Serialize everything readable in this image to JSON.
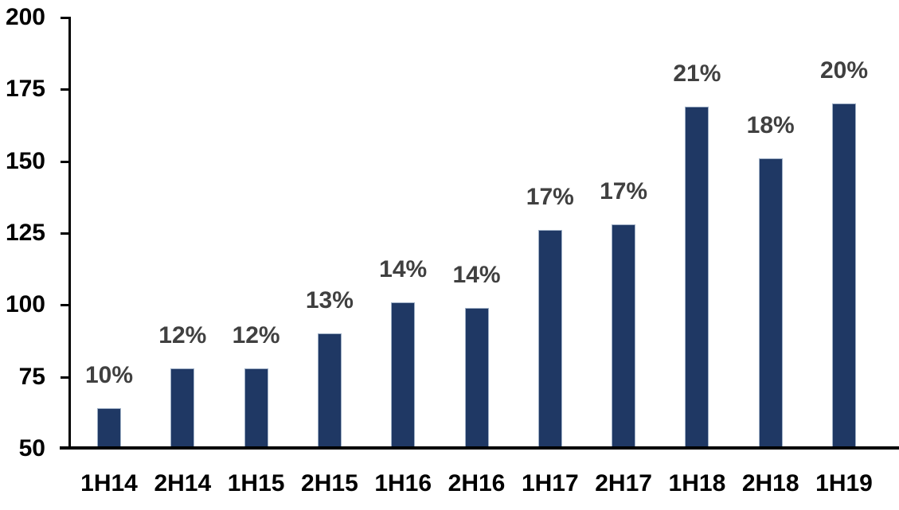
{
  "chart_data": {
    "type": "bar",
    "categories": [
      "1H14",
      "2H14",
      "1H15",
      "2H15",
      "1H16",
      "2H16",
      "1H17",
      "2H17",
      "1H18",
      "2H18",
      "1H19"
    ],
    "values": [
      64,
      78,
      78,
      90,
      101,
      99,
      126,
      128,
      169,
      151,
      170
    ],
    "bar_labels": [
      "10%",
      "12%",
      "12%",
      "13%",
      "14%",
      "14%",
      "17%",
      "17%",
      "21%",
      "18%",
      "20%"
    ],
    "title": "",
    "xlabel": "",
    "ylabel": "",
    "ylim": [
      50,
      200
    ],
    "yticks": [
      50,
      75,
      100,
      125,
      150,
      175,
      200
    ],
    "grid": false,
    "legend_position": "none",
    "colors": {
      "bar_fill": "#1F3864",
      "bar_edge": "#9fb0c6",
      "data_label": "#404040",
      "axis_text": "#000000",
      "axis_line": "#000000",
      "background": "#ffffff"
    }
  }
}
